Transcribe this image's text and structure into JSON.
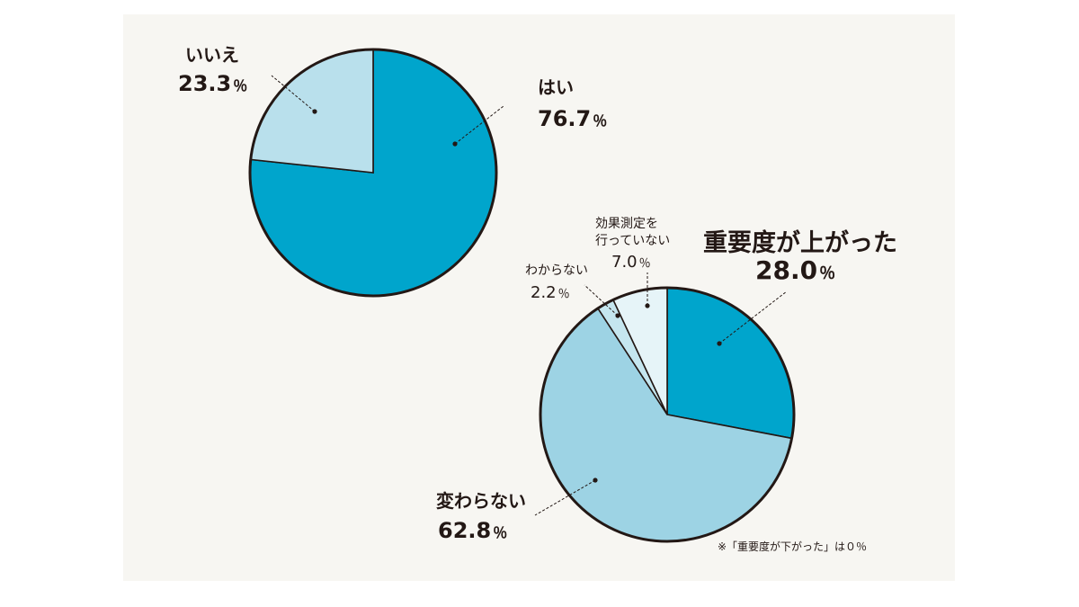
{
  "chart_data": [
    {
      "type": "pie",
      "slices": [
        {
          "label": "はい",
          "value": 76.7,
          "display": "76.7",
          "color": "#00a5cc"
        },
        {
          "label": "いいえ",
          "value": 23.3,
          "display": "23.3",
          "color": "#b9e0ec"
        }
      ],
      "unit": "％"
    },
    {
      "type": "pie",
      "slices": [
        {
          "label": "重要度が上がった",
          "value": 28.0,
          "display": "28.0",
          "color": "#00a5cc"
        },
        {
          "label": "変わらない",
          "value": 62.8,
          "display": "62.8",
          "color": "#9dd3e4"
        },
        {
          "label": "わからない",
          "value": 2.2,
          "display": "2.2",
          "color": "#c5e6ef"
        },
        {
          "label": "効果測定を\n行っていない",
          "value": 7.0,
          "display": "7.0",
          "color": "#e6f4f8"
        }
      ],
      "unit": "％"
    }
  ],
  "footnote": "※「重要度が下がった」は０％"
}
